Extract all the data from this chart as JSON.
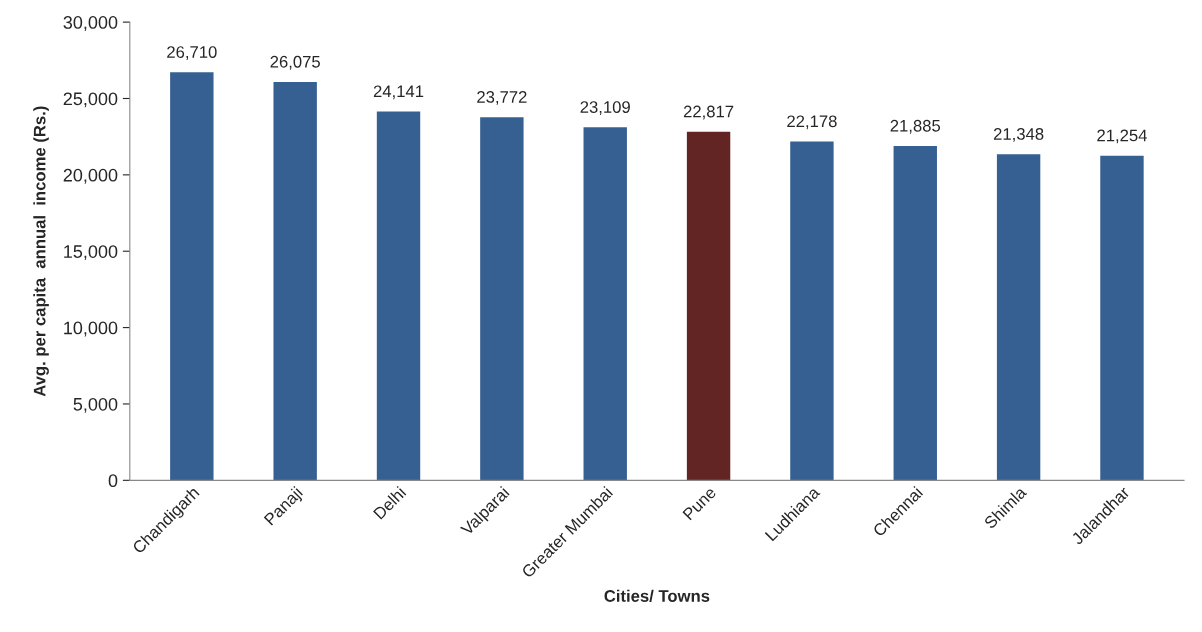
{
  "chart_data": {
    "type": "bar",
    "xlabel": "Cities/ Towns",
    "ylabel": "Avg. per capita  annual  income (Rs.)",
    "categories": [
      "Chandigarh",
      "Panaji",
      "Delhi",
      "Valparai",
      "Greater Mumbai",
      "Pune",
      "Ludhiana",
      "Chennai",
      "Shimla",
      "Jalandhar"
    ],
    "values": [
      26710,
      26075,
      24141,
      23772,
      23109,
      22817,
      22178,
      21885,
      21348,
      21254
    ],
    "colors": [
      "#376092",
      "#376092",
      "#376092",
      "#376092",
      "#376092",
      "#632523",
      "#376092",
      "#376092",
      "#376092",
      "#376092"
    ],
    "value_labels": [
      "26,710",
      "26,075",
      "24,141",
      "23,772",
      "23,109",
      "22,817",
      "22,178",
      "21,885",
      "21,348",
      "21,254"
    ],
    "ylim": [
      0,
      30000
    ],
    "yticks": [
      {
        "value": 0,
        "label": "0"
      },
      {
        "value": 5000,
        "label": "5,000"
      },
      {
        "value": 10000,
        "label": "10,000"
      },
      {
        "value": 15000,
        "label": "15,000"
      },
      {
        "value": 20000,
        "label": "20,000"
      },
      {
        "value": 25000,
        "label": "25,000"
      },
      {
        "value": 30000,
        "label": "30,000"
      }
    ],
    "grid": false,
    "legend": false
  }
}
